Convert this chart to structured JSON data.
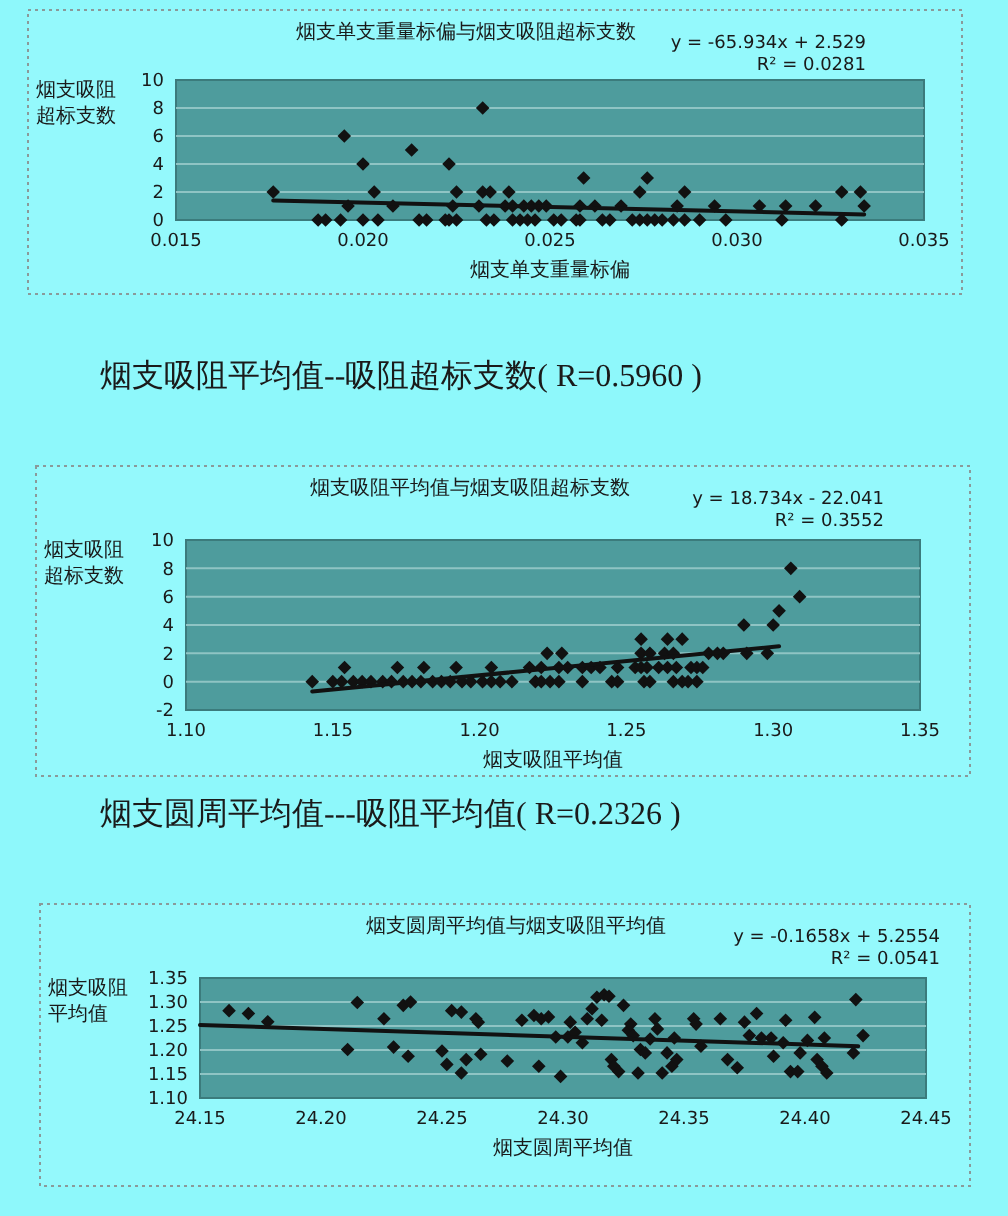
{
  "chart_data": [
    {
      "type": "scatter",
      "title": "烟支单支重量标偏与烟支吸阻超标支数",
      "xlabel": "烟支单支重量标偏",
      "ylabel": "烟支吸阻超标支数",
      "xlim": [
        0.015,
        0.035
      ],
      "xticks": [
        {
          "value": 0.015,
          "label": "0.015"
        },
        {
          "value": 0.02,
          "label": "0.020"
        },
        {
          "value": 0.025,
          "label": "0.025"
        },
        {
          "value": 0.03,
          "label": "0.030"
        },
        {
          "value": 0.035,
          "label": "0.035"
        }
      ],
      "ylim": [
        0,
        10
      ],
      "yticks": [
        0,
        2,
        4,
        6,
        8,
        10
      ],
      "grid": "y",
      "annotations": [
        "y = -65.934x + 2.529",
        "R² = 0.0281"
      ],
      "series": [
        {
          "marker": "diamond",
          "color": "#111111",
          "x": [
            0.0188,
            0.019,
            0.0194,
            0.02,
            0.0204,
            0.0215,
            0.0217,
            0.0222,
            0.0223,
            0.0225,
            0.0233,
            0.0235,
            0.024,
            0.0242,
            0.0244,
            0.0246,
            0.0251,
            0.0253,
            0.0257,
            0.0258,
            0.0264,
            0.0266,
            0.0272,
            0.0274,
            0.0276,
            0.0278,
            0.028,
            0.0283,
            0.0286,
            0.029,
            0.0297,
            0.0312,
            0.0328,
            0.0196,
            0.0208,
            0.0224,
            0.0231,
            0.0238,
            0.024,
            0.0243,
            0.0245,
            0.0247,
            0.0249,
            0.0258,
            0.0262,
            0.0269,
            0.0284,
            0.0294,
            0.0306,
            0.0313,
            0.0321,
            0.0334,
            0.0176,
            0.0203,
            0.0225,
            0.0232,
            0.0234,
            0.0239,
            0.0274,
            0.0286,
            0.0328,
            0.0333,
            0.0259,
            0.0276,
            0.02,
            0.0223,
            0.0213,
            0.0195,
            0.0232
          ],
          "values": [
            0,
            0,
            0,
            0,
            0,
            0,
            0,
            0,
            0,
            0,
            0,
            0,
            0,
            0,
            0,
            0,
            0,
            0,
            0,
            0,
            0,
            0,
            0,
            0,
            0,
            0,
            0,
            0,
            0,
            0,
            0,
            0,
            0,
            1,
            1,
            1,
            1,
            1,
            1,
            1,
            1,
            1,
            1,
            1,
            1,
            1,
            1,
            1,
            1,
            1,
            1,
            1,
            2,
            2,
            2,
            2,
            2,
            2,
            2,
            2,
            2,
            2,
            3,
            3,
            4,
            4,
            5,
            6,
            8
          ]
        },
        {
          "type": "line",
          "marker": "none",
          "color": "#111111",
          "x": [
            0.0176,
            0.0334
          ],
          "values": [
            1.4,
            0.4
          ]
        }
      ]
    },
    {
      "type": "scatter",
      "title": "烟支吸阻平均值与烟支吸阻超标支数",
      "xlabel": "烟支吸阻平均值",
      "ylabel": "烟支吸阻超标支数",
      "xlim": [
        1.1,
        1.35
      ],
      "xticks": [
        {
          "value": 1.1,
          "label": "1.10"
        },
        {
          "value": 1.15,
          "label": "1.15"
        },
        {
          "value": 1.2,
          "label": "1.20"
        },
        {
          "value": 1.25,
          "label": "1.25"
        },
        {
          "value": 1.3,
          "label": "1.30"
        },
        {
          "value": 1.35,
          "label": "1.35"
        }
      ],
      "ylim": [
        -2,
        10
      ],
      "yticks": [
        -2,
        0,
        2,
        4,
        6,
        8,
        10
      ],
      "grid": "y",
      "annotations": [
        "烟支吸阻平均值--吸阻超标支数( R=0.5960 )",
        "y = 18.734x - 22.041",
        "R² = 0.3552"
      ],
      "series": [
        {
          "marker": "diamond",
          "color": "#111111",
          "x": [
            1.143,
            1.15,
            1.153,
            1.157,
            1.16,
            1.163,
            1.167,
            1.17,
            1.174,
            1.177,
            1.18,
            1.184,
            1.187,
            1.19,
            1.194,
            1.197,
            1.201,
            1.204,
            1.207,
            1.211,
            1.219,
            1.221,
            1.224,
            1.227,
            1.235,
            1.245,
            1.247,
            1.256,
            1.258,
            1.266,
            1.269,
            1.271,
            1.274,
            1.154,
            1.172,
            1.181,
            1.192,
            1.204,
            1.217,
            1.221,
            1.227,
            1.23,
            1.235,
            1.238,
            1.241,
            1.247,
            1.253,
            1.255,
            1.257,
            1.261,
            1.264,
            1.267,
            1.272,
            1.274,
            1.276,
            1.223,
            1.228,
            1.255,
            1.258,
            1.263,
            1.266,
            1.278,
            1.281,
            1.283,
            1.291,
            1.298,
            1.255,
            1.264,
            1.269,
            1.29,
            1.3,
            1.302,
            1.309,
            1.306
          ],
          "values": [
            0,
            0,
            0,
            0,
            0,
            0,
            0,
            0,
            0,
            0,
            0,
            0,
            0,
            0,
            0,
            0,
            0,
            0,
            0,
            0,
            0,
            0,
            0,
            0,
            0,
            0,
            0,
            0,
            0,
            0,
            0,
            0,
            0,
            1,
            1,
            1,
            1,
            1,
            1,
            1,
            1,
            1,
            1,
            1,
            1,
            1,
            1,
            1,
            1,
            1,
            1,
            1,
            1,
            1,
            1,
            2,
            2,
            2,
            2,
            2,
            2,
            2,
            2,
            2,
            2,
            2,
            3,
            3,
            3,
            4,
            4,
            5,
            6,
            8
          ]
        },
        {
          "type": "line",
          "marker": "none",
          "color": "#111111",
          "x": [
            1.143,
            1.302
          ],
          "values": [
            -0.7,
            2.5
          ]
        }
      ]
    },
    {
      "type": "scatter",
      "title": "烟支圆周平均值与烟支吸阻平均值",
      "xlabel": "烟支圆周平均值",
      "ylabel": "烟支吸阻平均值",
      "xlim": [
        24.15,
        24.45
      ],
      "xticks": [
        {
          "value": 24.15,
          "label": "24.15"
        },
        {
          "value": 24.2,
          "label": "24.20"
        },
        {
          "value": 24.25,
          "label": "24.25"
        },
        {
          "value": 24.3,
          "label": "24.30"
        },
        {
          "value": 24.35,
          "label": "24.35"
        },
        {
          "value": 24.4,
          "label": "24.40"
        },
        {
          "value": 24.45,
          "label": "24.45"
        }
      ],
      "ylim": [
        1.1,
        1.35
      ],
      "yticks": [
        {
          "value": 1.1,
          "label": "1.10"
        },
        {
          "value": 1.15,
          "label": "1.15"
        },
        {
          "value": 1.2,
          "label": "1.20"
        },
        {
          "value": 1.25,
          "label": "1.25"
        },
        {
          "value": 1.3,
          "label": "1.30"
        },
        {
          "value": 1.35,
          "label": "1.35"
        }
      ],
      "grid": "y",
      "annotations": [
        "烟支圆周平均值---吸阻平均值( R=0.2326 )",
        "y = -0.1658x + 5.2554",
        "R² = 0.0541"
      ],
      "series": [
        {
          "marker": "diamond",
          "color": "#111111",
          "x": [
            24.162,
            24.17,
            24.178,
            24.211,
            24.215,
            24.226,
            24.23,
            24.234,
            24.237,
            24.236,
            24.25,
            24.252,
            24.254,
            24.258,
            24.258,
            24.26,
            24.264,
            24.265,
            24.266,
            24.277,
            24.283,
            24.288,
            24.291,
            24.294,
            24.29,
            24.297,
            24.299,
            24.302,
            24.303,
            24.305,
            24.308,
            24.31,
            24.312,
            24.314,
            24.316,
            24.317,
            24.319,
            24.32,
            24.321,
            24.323,
            24.325,
            24.327,
            24.328,
            24.329,
            24.331,
            24.332,
            24.334,
            24.336,
            24.338,
            24.339,
            24.341,
            24.343,
            24.345,
            24.346,
            24.347,
            24.354,
            24.355,
            24.357,
            24.365,
            24.368,
            24.372,
            24.375,
            24.377,
            24.38,
            24.382,
            24.386,
            24.387,
            24.391,
            24.392,
            24.394,
            24.397,
            24.398,
            24.401,
            24.404,
            24.405,
            24.407,
            24.409,
            24.408,
            24.42,
            24.421,
            24.424
          ],
          "values": [
            1.282,
            1.276,
            1.259,
            1.201,
            1.299,
            1.265,
            1.206,
            1.293,
            1.3,
            1.187,
            1.198,
            1.17,
            1.282,
            1.279,
            1.152,
            1.18,
            1.265,
            1.258,
            1.191,
            1.177,
            1.262,
            1.272,
            1.265,
            1.269,
            1.166,
            1.227,
            1.145,
            1.227,
            1.258,
            1.237,
            1.215,
            1.265,
            1.286,
            1.31,
            1.262,
            1.315,
            1.312,
            1.18,
            1.166,
            1.155,
            1.293,
            1.241,
            1.254,
            1.23,
            1.152,
            1.201,
            1.194,
            1.223,
            1.265,
            1.244,
            1.152,
            1.194,
            1.166,
            1.225,
            1.18,
            1.265,
            1.254,
            1.208,
            1.265,
            1.18,
            1.163,
            1.258,
            1.23,
            1.276,
            1.225,
            1.225,
            1.187,
            1.215,
            1.262,
            1.155,
            1.155,
            1.194,
            1.22,
            1.268,
            1.18,
            1.166,
            1.152,
            1.225,
            1.194,
            1.305,
            1.23
          ]
        },
        {
          "type": "line",
          "marker": "none",
          "color": "#111111",
          "x": [
            24.15,
            24.422
          ],
          "values": [
            1.252,
            1.208
          ]
        }
      ]
    }
  ]
}
